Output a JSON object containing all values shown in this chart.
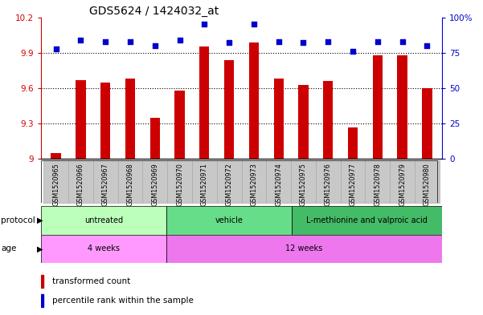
{
  "title": "GDS5624 / 1424032_at",
  "samples": [
    "GSM1520965",
    "GSM1520966",
    "GSM1520967",
    "GSM1520968",
    "GSM1520969",
    "GSM1520970",
    "GSM1520971",
    "GSM1520972",
    "GSM1520973",
    "GSM1520974",
    "GSM1520975",
    "GSM1520976",
    "GSM1520977",
    "GSM1520978",
    "GSM1520979",
    "GSM1520980"
  ],
  "transformed_count": [
    9.05,
    9.67,
    9.65,
    9.68,
    9.35,
    9.58,
    9.95,
    9.84,
    9.99,
    9.68,
    9.63,
    9.66,
    9.27,
    9.88,
    9.88,
    9.6
  ],
  "percentile_rank": [
    78,
    84,
    83,
    83,
    80,
    84,
    95,
    82,
    95,
    83,
    82,
    83,
    76,
    83,
    83,
    80
  ],
  "ylim_left": [
    9.0,
    10.2
  ],
  "ylim_right": [
    0,
    100
  ],
  "yticks_left": [
    9.0,
    9.3,
    9.6,
    9.9,
    10.2
  ],
  "yticks_right": [
    0,
    25,
    50,
    75,
    100
  ],
  "ytick_labels_left": [
    "9",
    "9.3",
    "9.6",
    "9.9",
    "10.2"
  ],
  "ytick_labels_right": [
    "0",
    "25",
    "50",
    "75",
    "100%"
  ],
  "hlines": [
    9.3,
    9.6,
    9.9
  ],
  "bar_color": "#cc0000",
  "dot_color": "#0000cc",
  "protocol_groups": [
    {
      "label": "untreated",
      "start": 0,
      "end": 4,
      "color": "#bbffbb"
    },
    {
      "label": "vehicle",
      "start": 5,
      "end": 9,
      "color": "#66dd88"
    },
    {
      "label": "L-methionine and valproic acid",
      "start": 10,
      "end": 15,
      "color": "#44bb66"
    }
  ],
  "age_groups": [
    {
      "label": "4 weeks",
      "start": 0,
      "end": 4,
      "color": "#ff99ff"
    },
    {
      "label": "12 weeks",
      "start": 5,
      "end": 15,
      "color": "#ee77ee"
    }
  ],
  "legend_items": [
    {
      "label": "transformed count",
      "color": "#cc0000"
    },
    {
      "label": "percentile rank within the sample",
      "color": "#0000cc"
    }
  ],
  "bg_color": "#ffffff",
  "bar_width": 0.4,
  "dot_size": 20,
  "sample_box_color": "#c8c8c8",
  "sample_box_edge": "#aaaaaa"
}
